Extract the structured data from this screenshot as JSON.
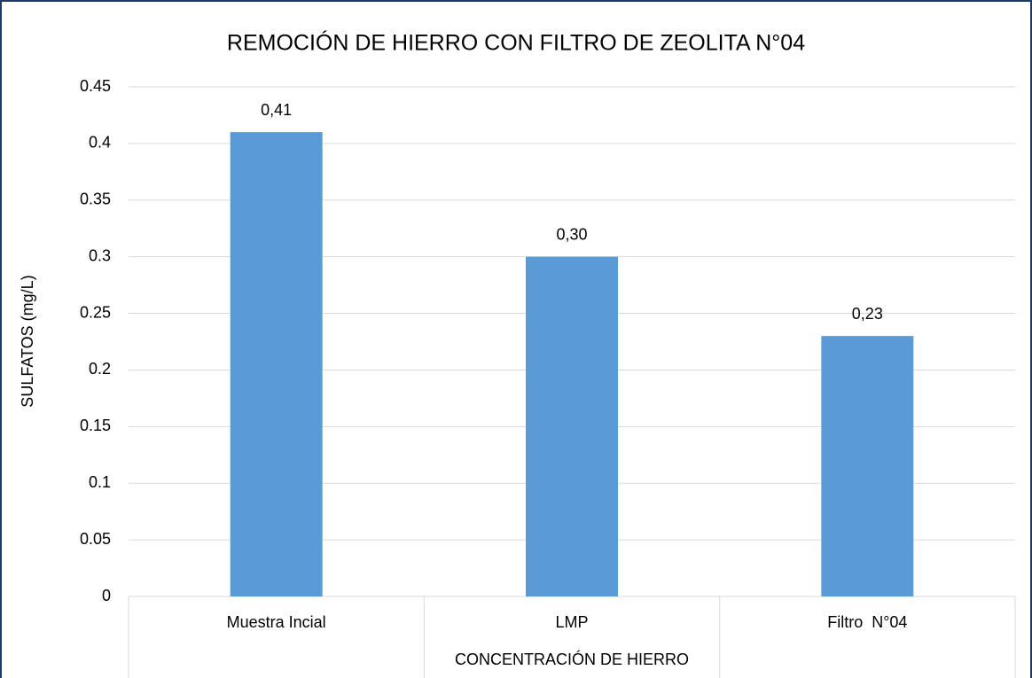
{
  "chart_data": {
    "type": "bar",
    "title": "REMOCIÓN DE HIERRO CON FILTRO DE ZEOLITA N°04",
    "x_label": "CONCENTRACIÓN DE HIERRO",
    "y_label": "SULFATOS (mg/L)",
    "categories": [
      "Muestra Incial",
      "LMP",
      "Filtro  N°04"
    ],
    "values": [
      0.41,
      0.3,
      0.23
    ],
    "value_labels": [
      "0,41",
      "0,30",
      "0,23"
    ],
    "color": "#5b9bd5",
    "ylim": [
      0,
      0.45
    ],
    "yticks": [
      0,
      0.05,
      0.1,
      0.15,
      0.2,
      0.25,
      0.3,
      0.35,
      0.4,
      0.45
    ],
    "grid": true
  }
}
